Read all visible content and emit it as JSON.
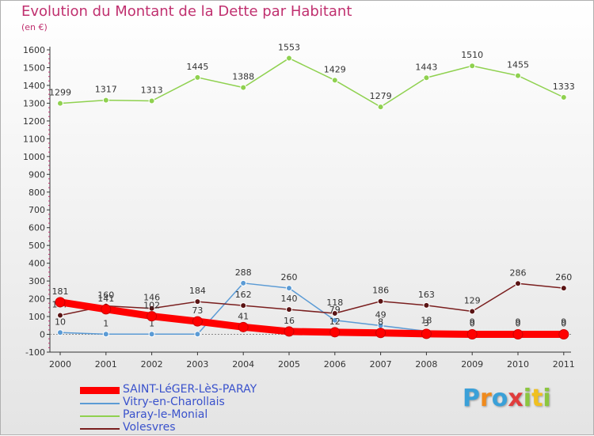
{
  "header": {
    "title": "Evolution du Montant de la Dette par Habitant",
    "unit": "(en €)"
  },
  "logo": {
    "text": "Proxiti"
  },
  "chart_data": {
    "type": "line",
    "title": "Evolution du Montant de la Dette par Habitant",
    "ylabel": "(en €)",
    "xlabel": "",
    "ylim": [
      -100,
      1600
    ],
    "yticks": [
      -100,
      0,
      100,
      200,
      300,
      400,
      500,
      600,
      700,
      800,
      900,
      1000,
      1100,
      1200,
      1300,
      1400,
      1500,
      1600
    ],
    "x": [
      "2000",
      "2001",
      "2002",
      "2003",
      "2004",
      "2005",
      "2006",
      "2007",
      "2008",
      "2009",
      "2010",
      "2011"
    ],
    "grid": false,
    "legend_position": "bottom-left",
    "series": [
      {
        "name": "SAINT-LéGER-LèS-PARAY",
        "color": "#ff0000",
        "values": [
          181,
          141,
          102,
          73,
          41,
          16,
          12,
          8,
          3,
          0,
          0,
          0
        ],
        "labels": [
          "181",
          "141",
          "102",
          "73",
          "41",
          "16",
          "12",
          "8",
          "3",
          "0",
          "0",
          "0"
        ],
        "emphasis": true
      },
      {
        "name": "Vitry-en-Charollais",
        "color": "#5b9bd5",
        "values": [
          10,
          1,
          1,
          1,
          288,
          260,
          79,
          49,
          18,
          9,
          9,
          9
        ],
        "labels": [
          "10",
          "1",
          "1",
          "",
          "288",
          "260",
          "79",
          "49",
          "18",
          "9",
          "9",
          "9"
        ]
      },
      {
        "name": "Paray-le-Monial",
        "color": "#8fd14f",
        "values": [
          1299,
          1317,
          1313,
          1445,
          1388,
          1553,
          1429,
          1279,
          1443,
          1510,
          1455,
          1333
        ],
        "labels": [
          "1299",
          "1317",
          "1313",
          "1445",
          "1388",
          "1553",
          "1429",
          "1279",
          "1443",
          "1510",
          "1455",
          "1333"
        ]
      },
      {
        "name": "Volesvres",
        "color": "#7a1f1f",
        "values": [
          107,
          160,
          146,
          184,
          162,
          140,
          118,
          186,
          163,
          129,
          286,
          260
        ],
        "labels": [
          "107",
          "160",
          "146",
          "184",
          "162",
          "140",
          "118",
          "186",
          "163",
          "129",
          "286",
          "260"
        ]
      }
    ]
  }
}
